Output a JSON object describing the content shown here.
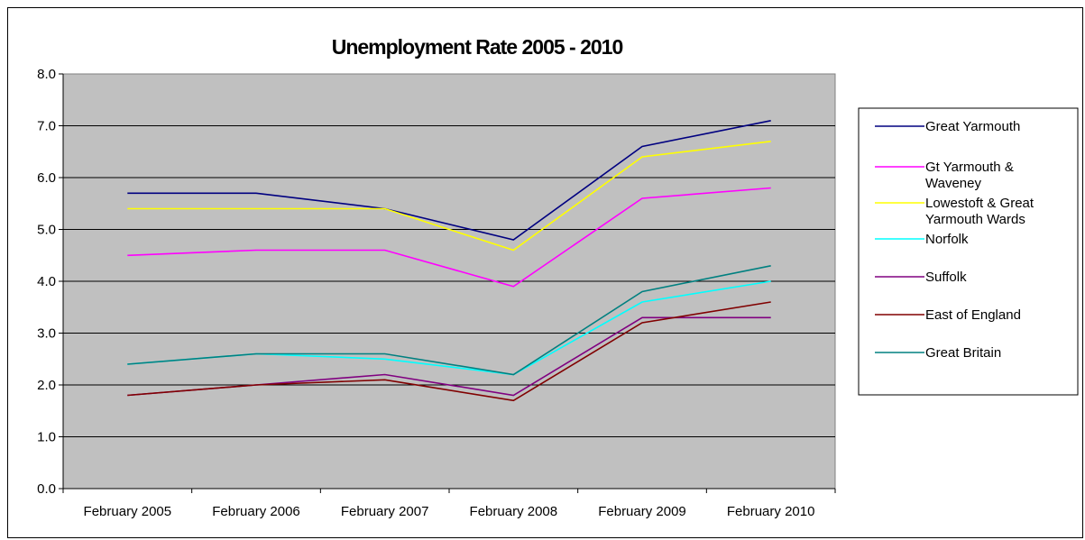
{
  "chart_data": {
    "type": "line",
    "title": "Unemployment Rate 2005 - 2010",
    "xlabel": "",
    "ylabel": "",
    "categories": [
      "February 2005",
      "February 2006",
      "February 2007",
      "February 2008",
      "February 2009",
      "February 2010"
    ],
    "ylim": [
      0,
      8
    ],
    "yticks": [
      "0.0",
      "1.0",
      "2.0",
      "3.0",
      "4.0",
      "5.0",
      "6.0",
      "7.0",
      "8.0"
    ],
    "grid": true,
    "legend_position": "right",
    "plot_background": "#c0c0c0",
    "series": [
      {
        "name": "Great Yarmouth",
        "legend_lines": [
          "Great Yarmouth"
        ],
        "color": "#000080",
        "values": [
          5.7,
          5.7,
          5.4,
          4.8,
          6.6,
          7.1
        ]
      },
      {
        "name": "Gt Yarmouth & Waveney",
        "legend_lines": [
          "Gt Yarmouth &",
          "Waveney"
        ],
        "color": "#ff00ff",
        "values": [
          4.5,
          4.6,
          4.6,
          3.9,
          5.6,
          5.8
        ]
      },
      {
        "name": "Lowestoft & Great Yarmouth Wards",
        "legend_lines": [
          "Lowestoft & Great",
          "Yarmouth Wards"
        ],
        "color": "#ffff00",
        "values": [
          5.4,
          5.4,
          5.4,
          4.6,
          6.4,
          6.7
        ]
      },
      {
        "name": "Norfolk",
        "legend_lines": [
          "Norfolk"
        ],
        "color": "#00ffff",
        "values": [
          2.4,
          2.6,
          2.5,
          2.2,
          3.6,
          4.0
        ]
      },
      {
        "name": "Suffolk",
        "legend_lines": [
          "Suffolk"
        ],
        "color": "#800080",
        "values": [
          1.8,
          2.0,
          2.2,
          1.8,
          3.3,
          3.3
        ]
      },
      {
        "name": "East of England",
        "legend_lines": [
          "East of England"
        ],
        "color": "#800000",
        "values": [
          1.8,
          2.0,
          2.1,
          1.7,
          3.2,
          3.6
        ]
      },
      {
        "name": "Great Britain",
        "legend_lines": [
          "Great Britain"
        ],
        "color": "#008080",
        "values": [
          2.4,
          2.6,
          2.6,
          2.2,
          3.8,
          4.3
        ]
      }
    ]
  }
}
